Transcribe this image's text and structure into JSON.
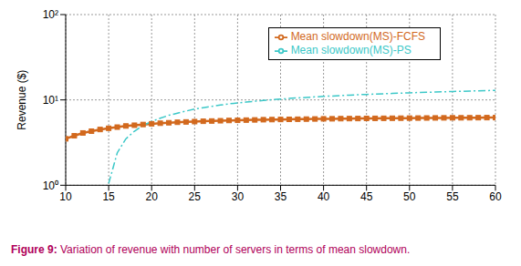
{
  "chart_data": {
    "type": "line",
    "title": "Figure 9: Variation of revenue with number of servers in terms of mean slowdown.",
    "y_label": "Revenue ($)",
    "x": [
      10,
      11,
      12,
      13,
      14,
      15,
      16,
      17,
      18,
      19,
      20,
      21,
      22,
      23,
      24,
      25,
      26,
      27,
      28,
      29,
      30,
      31,
      32,
      33,
      34,
      35,
      36,
      37,
      38,
      39,
      40,
      41,
      42,
      43,
      44,
      45,
      46,
      47,
      48,
      49,
      50,
      51,
      52,
      53,
      54,
      55,
      56,
      57,
      58,
      59,
      60
    ],
    "series": [
      {
        "name": "Mean slowdown(MS)-FCFS",
        "color": "#d2691e",
        "marker": "square",
        "line_style": "solid",
        "values": [
          3.5,
          3.8,
          4.1,
          4.3,
          4.5,
          4.65,
          4.8,
          4.95,
          5.05,
          5.15,
          5.25,
          5.33,
          5.4,
          5.47,
          5.52,
          5.57,
          5.62,
          5.66,
          5.7,
          5.74,
          5.77,
          5.8,
          5.83,
          5.86,
          5.88,
          5.9,
          5.92,
          5.94,
          5.96,
          5.98,
          6.0,
          6.01,
          6.03,
          6.04,
          6.05,
          6.07,
          6.08,
          6.09,
          6.1,
          6.11,
          6.12,
          6.13,
          6.14,
          6.15,
          6.16,
          6.17,
          6.17,
          6.18,
          6.19,
          6.2,
          6.2
        ]
      },
      {
        "name": "Mean slowdown(MS)-PS",
        "color": "#3cc8c8",
        "marker": "none",
        "line_style": "dashdot",
        "values": [
          null,
          null,
          null,
          null,
          null,
          1.05,
          2.4,
          3.5,
          4.3,
          5.0,
          5.6,
          6.1,
          6.6,
          7.0,
          7.4,
          7.8,
          8.1,
          8.4,
          8.7,
          9.0,
          9.2,
          9.45,
          9.65,
          9.85,
          10.05,
          10.2,
          10.4,
          10.55,
          10.7,
          10.85,
          11.0,
          11.1,
          11.25,
          11.35,
          11.5,
          11.6,
          11.7,
          11.8,
          11.9,
          12.0,
          12.1,
          12.2,
          12.3,
          12.35,
          12.45,
          12.55,
          12.6,
          12.7,
          12.8,
          12.85,
          12.95
        ]
      }
    ],
    "xlim": [
      10,
      60
    ],
    "xticks": [
      10,
      15,
      20,
      25,
      30,
      35,
      40,
      45,
      50,
      55,
      60
    ],
    "ylim": [
      1,
      100
    ],
    "yticks": [
      {
        "value": 1,
        "label": "10⁰"
      },
      {
        "value": 10,
        "label": "10¹"
      },
      {
        "value": 100,
        "label": "10²"
      }
    ],
    "log": "y",
    "grid": true,
    "legend": "upper right"
  }
}
